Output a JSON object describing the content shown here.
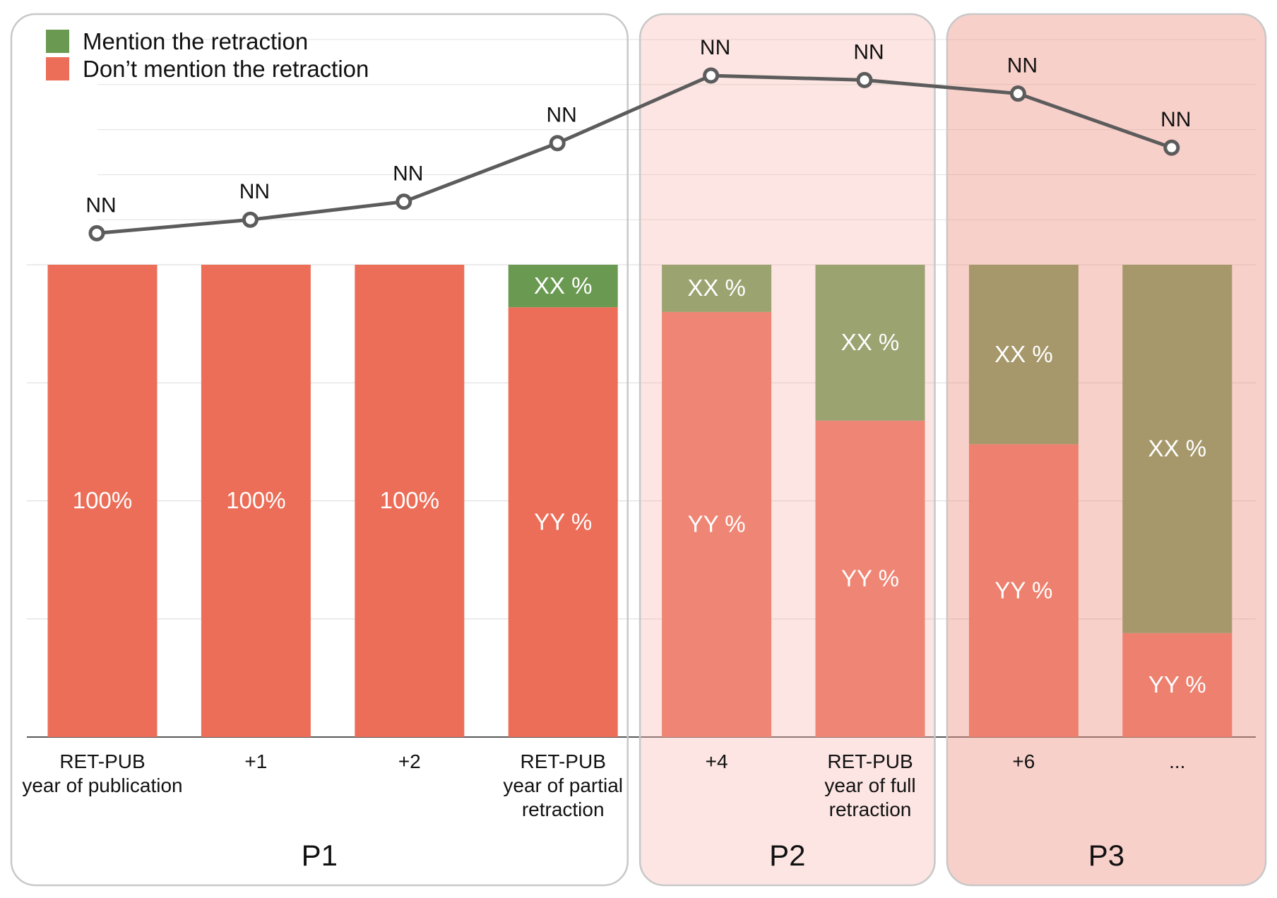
{
  "chart_data": {
    "type": "bar",
    "stacked": true,
    "categories": [
      [
        "RET-PUB",
        "year of publication"
      ],
      [
        "+1"
      ],
      [
        "+2"
      ],
      [
        "RET-PUB",
        "year of partial",
        "retraction"
      ],
      [
        "+4"
      ],
      [
        "RET-PUB",
        "year of full",
        "retraction"
      ],
      [
        "+6"
      ],
      [
        "..."
      ]
    ],
    "series": [
      {
        "name": "Mention the retraction",
        "color": "#6a9a52",
        "values": [
          0,
          0,
          0,
          9,
          10,
          33,
          38,
          78
        ],
        "labels": [
          "",
          "",
          "",
          "XX %",
          "XX %",
          "XX %",
          "XX %",
          "XX %"
        ]
      },
      {
        "name": "Don’t mention the retraction",
        "color": "#ec6e58",
        "values": [
          100,
          100,
          100,
          91,
          90,
          67,
          62,
          22
        ],
        "labels": [
          "100%",
          "100%",
          "100%",
          "YY %",
          "YY %",
          "YY %",
          "YY %",
          "YY %"
        ]
      }
    ],
    "ylim": [
      0,
      100
    ],
    "line": {
      "color": "#5c5c5c",
      "values": [
        7,
        10,
        14,
        27,
        42,
        41,
        38,
        26
      ],
      "labels": [
        "NN",
        "NN",
        "NN",
        "NN",
        "NN",
        "NN",
        "NN",
        "NN"
      ],
      "ylim": [
        0,
        50
      ]
    },
    "periods": [
      {
        "label": "P1",
        "first": 0,
        "last": 3,
        "fill": "#ffffff",
        "opacity": 0
      },
      {
        "label": "P2",
        "first": 4,
        "last": 5,
        "fill": "#f5b5ad",
        "opacity": 0.35
      },
      {
        "label": "P3",
        "first": 6,
        "last": 7,
        "fill": "#f0968a",
        "opacity": 0.45
      }
    ],
    "legend_position": "top-left",
    "grid": true
  }
}
